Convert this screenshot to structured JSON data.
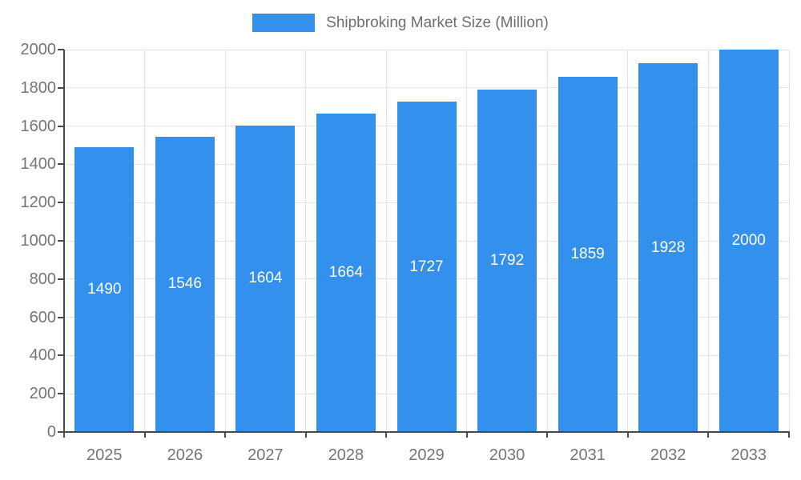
{
  "chart_data": {
    "type": "bar",
    "title": "Shipbroking Market Size (Million)",
    "categories": [
      "2025",
      "2026",
      "2027",
      "2028",
      "2029",
      "2030",
      "2031",
      "2032",
      "2033"
    ],
    "values": [
      1490,
      1546,
      1604,
      1664,
      1727,
      1792,
      1859,
      1928,
      2000
    ],
    "series": [
      {
        "name": "Shipbroking Market Size (Million)",
        "values": [
          1490,
          1546,
          1604,
          1664,
          1727,
          1792,
          1859,
          1928,
          2000
        ]
      }
    ],
    "xlabel": "",
    "ylabel": "",
    "ylim": [
      0,
      2000
    ],
    "ytick_step": 200,
    "yticks": [
      0,
      200,
      400,
      600,
      800,
      1000,
      1200,
      1400,
      1600,
      1800,
      2000
    ],
    "grid": true,
    "legend_position": "top-center",
    "bar_color": "#3390ec",
    "value_label_color": "#ffffff",
    "axis_text_color": "#757575",
    "gridline_color": "#e2e2e2",
    "axis_line_color": "#4a4a4a"
  }
}
